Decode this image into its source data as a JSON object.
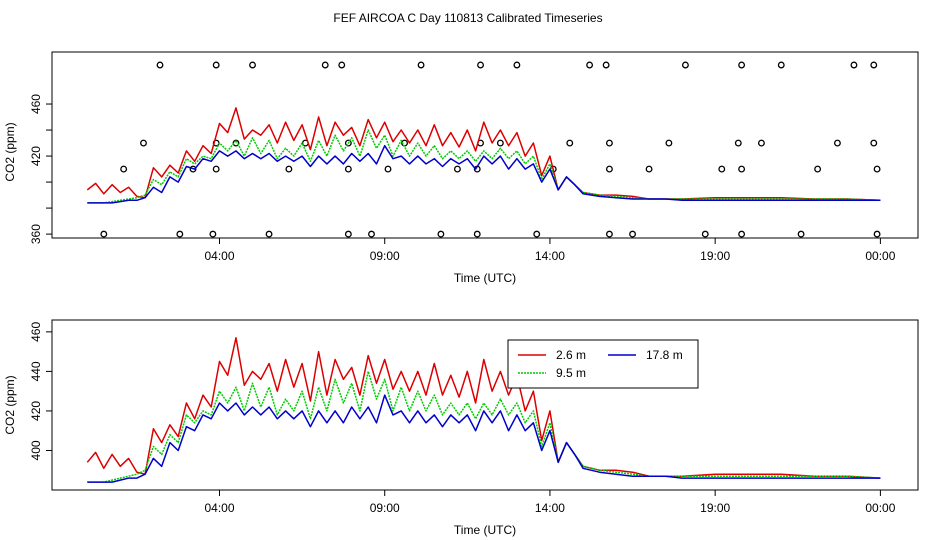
{
  "title": "FEF AIRCOA C  Day 110813  Calibrated Timeseries",
  "colors": {
    "s26": "#dd0000",
    "s95": "#00cc00",
    "s178": "#0000cc",
    "frame": "#000000"
  },
  "chart_data": [
    {
      "type": "line",
      "name": "top",
      "xlabel": "Time (UTC)",
      "ylabel": "CO2 (ppm)",
      "xticks": [
        {
          "h": 4,
          "label": "04:00"
        },
        {
          "h": 9,
          "label": "09:00"
        },
        {
          "h": 14,
          "label": "14:00"
        },
        {
          "h": 19,
          "label": "19:00"
        },
        {
          "h": 24,
          "label": "00:00"
        }
      ],
      "yticks": [
        360,
        380,
        400,
        420,
        440,
        460
      ],
      "ytick_labels": [
        "360",
        "",
        "",
        "420",
        "",
        "460"
      ],
      "xlim": [
        -0.1,
        24.2
      ],
      "ylim": [
        357,
        500
      ],
      "scatter_series": "calibration points",
      "scatter": [
        [
          0.5,
          360
        ],
        [
          2.2,
          490
        ],
        [
          1.1,
          410
        ],
        [
          1.7,
          430
        ],
        [
          2.8,
          360
        ],
        [
          3.2,
          410
        ],
        [
          3.8,
          360
        ],
        [
          3.9,
          410
        ],
        [
          3.9,
          430
        ],
        [
          3.9,
          490
        ],
        [
          4.5,
          430
        ],
        [
          5.0,
          490
        ],
        [
          5.5,
          360
        ],
        [
          6.1,
          410
        ],
        [
          6.6,
          430
        ],
        [
          7.2,
          490
        ],
        [
          7.7,
          490
        ],
        [
          7.9,
          410
        ],
        [
          7.9,
          430
        ],
        [
          7.9,
          360
        ],
        [
          8.6,
          360
        ],
        [
          9.1,
          410
        ],
        [
          9.6,
          430
        ],
        [
          10.1,
          490
        ],
        [
          10.7,
          360
        ],
        [
          11.2,
          410
        ],
        [
          11.8,
          360
        ],
        [
          11.8,
          410
        ],
        [
          11.9,
          430
        ],
        [
          11.9,
          490
        ],
        [
          12.5,
          430
        ],
        [
          13.0,
          490
        ],
        [
          13.6,
          360
        ],
        [
          14.1,
          410
        ],
        [
          14.6,
          430
        ],
        [
          15.2,
          490
        ],
        [
          15.7,
          490
        ],
        [
          15.8,
          430
        ],
        [
          15.8,
          410
        ],
        [
          15.8,
          360
        ],
        [
          16.5,
          360
        ],
        [
          17.0,
          410
        ],
        [
          17.6,
          430
        ],
        [
          18.1,
          490
        ],
        [
          18.7,
          360
        ],
        [
          19.2,
          410
        ],
        [
          19.7,
          430
        ],
        [
          19.8,
          490
        ],
        [
          19.8,
          410
        ],
        [
          19.8,
          360
        ],
        [
          20.4,
          430
        ],
        [
          21.0,
          490
        ],
        [
          21.6,
          360
        ],
        [
          22.1,
          410
        ],
        [
          22.7,
          430
        ],
        [
          23.2,
          490
        ],
        [
          23.8,
          490
        ],
        [
          23.8,
          430
        ],
        [
          23.9,
          410
        ],
        [
          23.9,
          360
        ]
      ]
    },
    {
      "type": "line",
      "name": "bottom",
      "xlabel": "Time (UTC)",
      "ylabel": "CO2 (ppm)",
      "xticks": [
        {
          "h": 4,
          "label": "04:00"
        },
        {
          "h": 9,
          "label": "09:00"
        },
        {
          "h": 14,
          "label": "14:00"
        },
        {
          "h": 19,
          "label": "19:00"
        },
        {
          "h": 24,
          "label": "00:00"
        }
      ],
      "yticks": [
        400,
        420,
        440,
        460
      ],
      "ytick_labels": [
        "400",
        "420",
        "440",
        "460"
      ],
      "xlim": [
        -0.1,
        24.2
      ],
      "ylim": [
        380,
        466
      ],
      "legend": {
        "position": "top-right",
        "entries": [
          {
            "label": "2.6 m",
            "color_key": "s26"
          },
          {
            "label": "17.8 m",
            "color_key": "s178"
          },
          {
            "label": "9.5 m",
            "color_key": "s95"
          }
        ]
      }
    }
  ],
  "series": {
    "hours": [
      0,
      0.25,
      0.5,
      0.75,
      1,
      1.25,
      1.5,
      1.75,
      2,
      2.25,
      2.5,
      2.75,
      3,
      3.25,
      3.5,
      3.75,
      4,
      4.25,
      4.5,
      4.75,
      5,
      5.25,
      5.5,
      5.75,
      6,
      6.25,
      6.5,
      6.75,
      7,
      7.25,
      7.5,
      7.75,
      8,
      8.25,
      8.5,
      8.75,
      9,
      9.25,
      9.5,
      9.75,
      10,
      10.25,
      10.5,
      10.75,
      11,
      11.25,
      11.5,
      11.75,
      12,
      12.25,
      12.5,
      12.75,
      13,
      13.25,
      13.5,
      13.75,
      14,
      14.25,
      14.5,
      14.75,
      15,
      15.5,
      16,
      16.5,
      17,
      17.5,
      18,
      19,
      20,
      21,
      22,
      23,
      24
    ],
    "s26": [
      394,
      399,
      391,
      398,
      392,
      396,
      389,
      388,
      411,
      404,
      413,
      407,
      424,
      416,
      428,
      422,
      445,
      438,
      457,
      433,
      440,
      436,
      444,
      430,
      446,
      432,
      444,
      425,
      450,
      428,
      446,
      436,
      442,
      428,
      448,
      434,
      446,
      431,
      440,
      430,
      440,
      428,
      444,
      428,
      438,
      427,
      440,
      424,
      446,
      430,
      440,
      428,
      438,
      420,
      430,
      405,
      420,
      394,
      404,
      398,
      392,
      390,
      390,
      389,
      387,
      387,
      387,
      388,
      388,
      388,
      387,
      387,
      386
    ],
    "s95": [
      384,
      384,
      384,
      385,
      386,
      387,
      388,
      390,
      402,
      398,
      408,
      404,
      418,
      414,
      420,
      418,
      430,
      424,
      432,
      420,
      434,
      422,
      432,
      418,
      426,
      420,
      430,
      416,
      432,
      420,
      436,
      424,
      434,
      420,
      440,
      426,
      436,
      420,
      432,
      420,
      430,
      420,
      428,
      418,
      424,
      418,
      424,
      416,
      424,
      418,
      426,
      418,
      424,
      414,
      420,
      402,
      414,
      394,
      404,
      398,
      392,
      390,
      389,
      388,
      387,
      387,
      387,
      387,
      387,
      387,
      387,
      387,
      386
    ],
    "s178": [
      384,
      384,
      384,
      384,
      385,
      386,
      386,
      388,
      396,
      392,
      404,
      400,
      412,
      410,
      418,
      416,
      424,
      420,
      424,
      418,
      422,
      418,
      422,
      416,
      420,
      416,
      420,
      412,
      420,
      414,
      420,
      414,
      422,
      416,
      422,
      414,
      428,
      418,
      420,
      414,
      420,
      414,
      418,
      412,
      418,
      414,
      418,
      410,
      420,
      414,
      420,
      410,
      418,
      410,
      414,
      400,
      410,
      394,
      404,
      398,
      391,
      389,
      388,
      387,
      387,
      387,
      386,
      386,
      386,
      386,
      386,
      386,
      386
    ]
  }
}
